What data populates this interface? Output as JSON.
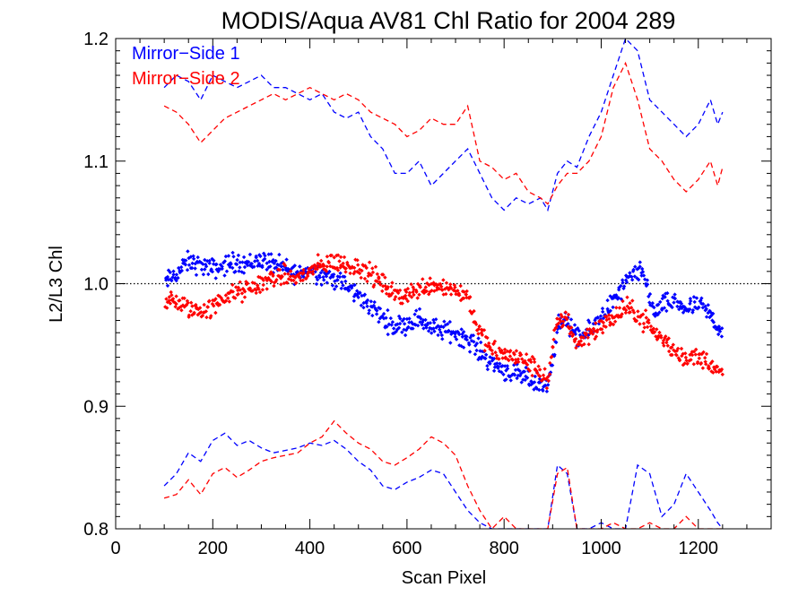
{
  "chart_data": {
    "type": "scatter",
    "title": "MODIS/Aqua AV81 Chl Ratio for 2004 289",
    "xlabel": "Scan Pixel",
    "ylabel": "L2/L3 Chl",
    "xlim": [
      0,
      1350
    ],
    "ylim": [
      0.8,
      1.2
    ],
    "xticks": [
      0,
      200,
      400,
      600,
      800,
      1000,
      1200
    ],
    "yticks": [
      0.8,
      0.9,
      1.0,
      1.1,
      1.2
    ],
    "xtick_labels": [
      "0",
      "200",
      "400",
      "600",
      "800",
      "1000",
      "1200"
    ],
    "ytick_labels": [
      "0.8",
      "0.9",
      "1.0",
      "1.1",
      "1.2"
    ],
    "reference_line": 1.0,
    "legend_position": "top-left",
    "legend": [
      "Mirror−Side 1",
      "Mirror−Side 2"
    ],
    "series": [
      {
        "name": "Mirror−Side 1",
        "color": "#0000ff",
        "mean": [
          [
            100,
            1.0
          ],
          [
            125,
            1.008
          ],
          [
            150,
            1.018
          ],
          [
            175,
            1.015
          ],
          [
            200,
            1.012
          ],
          [
            225,
            1.015
          ],
          [
            250,
            1.018
          ],
          [
            275,
            1.016
          ],
          [
            300,
            1.02
          ],
          [
            325,
            1.016
          ],
          [
            350,
            1.012
          ],
          [
            375,
            1.008
          ],
          [
            400,
            1.012
          ],
          [
            425,
            1.008
          ],
          [
            450,
            1.004
          ],
          [
            475,
            0.998
          ],
          [
            500,
            0.99
          ],
          [
            525,
            0.982
          ],
          [
            550,
            0.972
          ],
          [
            575,
            0.965
          ],
          [
            600,
            0.968
          ],
          [
            625,
            0.972
          ],
          [
            650,
            0.964
          ],
          [
            675,
            0.962
          ],
          [
            700,
            0.96
          ],
          [
            725,
            0.955
          ],
          [
            750,
            0.945
          ],
          [
            775,
            0.935
          ],
          [
            800,
            0.93
          ],
          [
            825,
            0.925
          ],
          [
            850,
            0.922
          ],
          [
            875,
            0.918
          ],
          [
            890,
            0.915
          ],
          [
            910,
            0.965
          ],
          [
            930,
            0.97
          ],
          [
            950,
            0.955
          ],
          [
            975,
            0.96
          ],
          [
            1000,
            0.975
          ],
          [
            1025,
            0.985
          ],
          [
            1050,
            1.0
          ],
          [
            1075,
            1.01
          ],
          [
            1090,
            1.005
          ],
          [
            1110,
            0.975
          ],
          [
            1125,
            0.982
          ],
          [
            1150,
            0.985
          ],
          [
            1175,
            0.98
          ],
          [
            1200,
            0.982
          ],
          [
            1225,
            0.975
          ],
          [
            1240,
            0.965
          ],
          [
            1250,
            0.96
          ]
        ],
        "upper": [
          [
            100,
            1.16
          ],
          [
            125,
            1.17
          ],
          [
            150,
            1.165
          ],
          [
            175,
            1.15
          ],
          [
            200,
            1.17
          ],
          [
            225,
            1.165
          ],
          [
            250,
            1.16
          ],
          [
            275,
            1.165
          ],
          [
            300,
            1.17
          ],
          [
            325,
            1.16
          ],
          [
            350,
            1.16
          ],
          [
            375,
            1.155
          ],
          [
            400,
            1.15
          ],
          [
            425,
            1.155
          ],
          [
            450,
            1.14
          ],
          [
            475,
            1.135
          ],
          [
            500,
            1.14
          ],
          [
            525,
            1.12
          ],
          [
            550,
            1.11
          ],
          [
            575,
            1.09
          ],
          [
            600,
            1.09
          ],
          [
            625,
            1.1
          ],
          [
            650,
            1.08
          ],
          [
            675,
            1.09
          ],
          [
            700,
            1.1
          ],
          [
            725,
            1.11
          ],
          [
            750,
            1.09
          ],
          [
            775,
            1.07
          ],
          [
            800,
            1.06
          ],
          [
            825,
            1.07
          ],
          [
            850,
            1.065
          ],
          [
            875,
            1.07
          ],
          [
            890,
            1.06
          ],
          [
            910,
            1.09
          ],
          [
            930,
            1.1
          ],
          [
            950,
            1.095
          ],
          [
            975,
            1.12
          ],
          [
            1000,
            1.14
          ],
          [
            1025,
            1.17
          ],
          [
            1050,
            1.2
          ],
          [
            1075,
            1.19
          ],
          [
            1100,
            1.15
          ],
          [
            1125,
            1.14
          ],
          [
            1150,
            1.13
          ],
          [
            1175,
            1.12
          ],
          [
            1200,
            1.13
          ],
          [
            1225,
            1.15
          ],
          [
            1240,
            1.13
          ],
          [
            1250,
            1.14
          ]
        ],
        "lower": [
          [
            100,
            0.835
          ],
          [
            125,
            0.845
          ],
          [
            150,
            0.862
          ],
          [
            175,
            0.855
          ],
          [
            200,
            0.872
          ],
          [
            225,
            0.878
          ],
          [
            250,
            0.868
          ],
          [
            275,
            0.872
          ],
          [
            300,
            0.866
          ],
          [
            325,
            0.862
          ],
          [
            350,
            0.864
          ],
          [
            375,
            0.866
          ],
          [
            400,
            0.87
          ],
          [
            425,
            0.868
          ],
          [
            450,
            0.872
          ],
          [
            475,
            0.865
          ],
          [
            500,
            0.855
          ],
          [
            525,
            0.848
          ],
          [
            550,
            0.835
          ],
          [
            575,
            0.832
          ],
          [
            600,
            0.838
          ],
          [
            625,
            0.842
          ],
          [
            650,
            0.848
          ],
          [
            675,
            0.845
          ],
          [
            700,
            0.83
          ],
          [
            725,
            0.815
          ],
          [
            750,
            0.805
          ],
          [
            775,
            0.8
          ],
          [
            800,
            0.8
          ],
          [
            825,
            0.8
          ],
          [
            850,
            0.8
          ],
          [
            875,
            0.8
          ],
          [
            890,
            0.8
          ],
          [
            910,
            0.852
          ],
          [
            930,
            0.845
          ],
          [
            950,
            0.8
          ],
          [
            975,
            0.8
          ],
          [
            1000,
            0.805
          ],
          [
            1025,
            0.8
          ],
          [
            1050,
            0.8
          ],
          [
            1075,
            0.852
          ],
          [
            1100,
            0.845
          ],
          [
            1125,
            0.81
          ],
          [
            1150,
            0.82
          ],
          [
            1175,
            0.845
          ],
          [
            1200,
            0.83
          ],
          [
            1225,
            0.815
          ],
          [
            1240,
            0.805
          ],
          [
            1250,
            0.8
          ]
        ]
      },
      {
        "name": "Mirror−Side 2",
        "color": "#ff0000",
        "mean": [
          [
            100,
            0.985
          ],
          [
            125,
            0.985
          ],
          [
            150,
            0.98
          ],
          [
            175,
            0.978
          ],
          [
            200,
            0.98
          ],
          [
            225,
            0.99
          ],
          [
            250,
            0.992
          ],
          [
            275,
            0.995
          ],
          [
            300,
            1.0
          ],
          [
            325,
            1.005
          ],
          [
            350,
            1.006
          ],
          [
            375,
            1.004
          ],
          [
            400,
            1.01
          ],
          [
            425,
            1.015
          ],
          [
            450,
            1.018
          ],
          [
            475,
            1.015
          ],
          [
            500,
            1.014
          ],
          [
            525,
            1.008
          ],
          [
            550,
            1.0
          ],
          [
            575,
            0.99
          ],
          [
            600,
            0.992
          ],
          [
            625,
            0.995
          ],
          [
            650,
            1.0
          ],
          [
            675,
            0.998
          ],
          [
            700,
            0.995
          ],
          [
            725,
            0.99
          ],
          [
            750,
            0.96
          ],
          [
            775,
            0.945
          ],
          [
            800,
            0.942
          ],
          [
            825,
            0.94
          ],
          [
            850,
            0.935
          ],
          [
            875,
            0.928
          ],
          [
            890,
            0.92
          ],
          [
            910,
            0.97
          ],
          [
            930,
            0.972
          ],
          [
            950,
            0.95
          ],
          [
            975,
            0.96
          ],
          [
            1000,
            0.965
          ],
          [
            1025,
            0.972
          ],
          [
            1050,
            0.98
          ],
          [
            1075,
            0.975
          ],
          [
            1090,
            0.97
          ],
          [
            1110,
            0.96
          ],
          [
            1125,
            0.955
          ],
          [
            1150,
            0.945
          ],
          [
            1175,
            0.94
          ],
          [
            1200,
            0.94
          ],
          [
            1225,
            0.935
          ],
          [
            1240,
            0.928
          ],
          [
            1250,
            0.925
          ]
        ],
        "upper": [
          [
            100,
            1.145
          ],
          [
            125,
            1.14
          ],
          [
            150,
            1.13
          ],
          [
            175,
            1.115
          ],
          [
            200,
            1.125
          ],
          [
            225,
            1.135
          ],
          [
            250,
            1.14
          ],
          [
            275,
            1.145
          ],
          [
            300,
            1.15
          ],
          [
            325,
            1.155
          ],
          [
            350,
            1.15
          ],
          [
            375,
            1.155
          ],
          [
            400,
            1.16
          ],
          [
            425,
            1.155
          ],
          [
            450,
            1.15
          ],
          [
            475,
            1.155
          ],
          [
            500,
            1.15
          ],
          [
            525,
            1.14
          ],
          [
            550,
            1.135
          ],
          [
            575,
            1.13
          ],
          [
            600,
            1.12
          ],
          [
            625,
            1.125
          ],
          [
            650,
            1.135
          ],
          [
            675,
            1.13
          ],
          [
            700,
            1.13
          ],
          [
            725,
            1.145
          ],
          [
            750,
            1.1
          ],
          [
            775,
            1.095
          ],
          [
            800,
            1.085
          ],
          [
            825,
            1.09
          ],
          [
            850,
            1.075
          ],
          [
            875,
            1.07
          ],
          [
            890,
            1.065
          ],
          [
            910,
            1.08
          ],
          [
            930,
            1.09
          ],
          [
            950,
            1.09
          ],
          [
            975,
            1.1
          ],
          [
            1000,
            1.12
          ],
          [
            1025,
            1.16
          ],
          [
            1050,
            1.18
          ],
          [
            1075,
            1.15
          ],
          [
            1100,
            1.11
          ],
          [
            1125,
            1.1
          ],
          [
            1150,
            1.085
          ],
          [
            1175,
            1.075
          ],
          [
            1200,
            1.085
          ],
          [
            1225,
            1.1
          ],
          [
            1240,
            1.08
          ],
          [
            1250,
            1.095
          ]
        ],
        "lower": [
          [
            100,
            0.825
          ],
          [
            125,
            0.828
          ],
          [
            150,
            0.84
          ],
          [
            175,
            0.828
          ],
          [
            200,
            0.845
          ],
          [
            225,
            0.85
          ],
          [
            250,
            0.842
          ],
          [
            275,
            0.848
          ],
          [
            300,
            0.855
          ],
          [
            325,
            0.858
          ],
          [
            350,
            0.86
          ],
          [
            375,
            0.862
          ],
          [
            400,
            0.87
          ],
          [
            425,
            0.875
          ],
          [
            450,
            0.888
          ],
          [
            475,
            0.878
          ],
          [
            500,
            0.87
          ],
          [
            525,
            0.865
          ],
          [
            550,
            0.855
          ],
          [
            575,
            0.852
          ],
          [
            600,
            0.858
          ],
          [
            625,
            0.865
          ],
          [
            650,
            0.875
          ],
          [
            675,
            0.87
          ],
          [
            700,
            0.86
          ],
          [
            725,
            0.835
          ],
          [
            750,
            0.815
          ],
          [
            775,
            0.8
          ],
          [
            800,
            0.81
          ],
          [
            825,
            0.8
          ],
          [
            850,
            0.8
          ],
          [
            875,
            0.8
          ],
          [
            890,
            0.8
          ],
          [
            910,
            0.845
          ],
          [
            930,
            0.85
          ],
          [
            950,
            0.8
          ],
          [
            975,
            0.8
          ],
          [
            1000,
            0.8
          ],
          [
            1025,
            0.805
          ],
          [
            1050,
            0.8
          ],
          [
            1075,
            0.8
          ],
          [
            1100,
            0.805
          ],
          [
            1125,
            0.8
          ],
          [
            1150,
            0.8
          ],
          [
            1175,
            0.81
          ],
          [
            1200,
            0.8
          ],
          [
            1225,
            0.8
          ],
          [
            1240,
            0.8
          ],
          [
            1250,
            0.8
          ]
        ]
      }
    ]
  }
}
